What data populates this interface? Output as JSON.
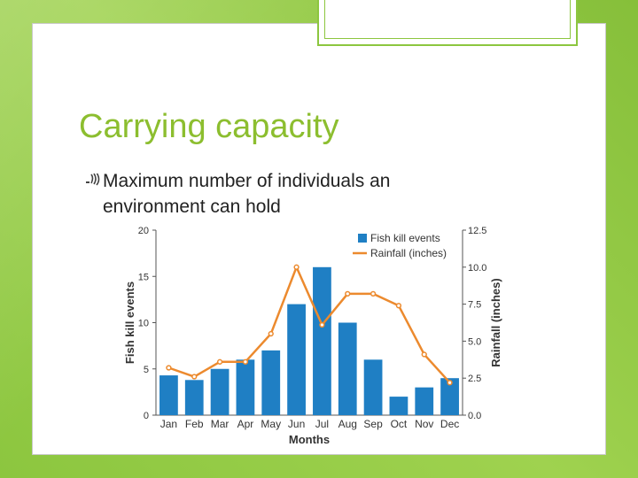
{
  "slide": {
    "title": "Carrying capacity",
    "bullet": "Maximum number of individuals an environment can hold",
    "bullet_icon": "signal-wave-icon",
    "accent_color": "#8cc63f",
    "title_color": "#8cbe2f"
  },
  "chart_data": {
    "type": "bar",
    "categories": [
      "Jan",
      "Feb",
      "Mar",
      "Apr",
      "May",
      "Jun",
      "Jul",
      "Aug",
      "Sep",
      "Oct",
      "Nov",
      "Dec"
    ],
    "series": [
      {
        "name": "Fish kill events",
        "type": "bar",
        "axis": "left",
        "color": "#1f7fc4",
        "values": [
          4.3,
          3.8,
          5,
          6,
          7,
          12,
          16,
          10,
          6,
          2,
          3,
          4
        ]
      },
      {
        "name": "Rainfall (inches)",
        "type": "line",
        "axis": "right",
        "color": "#ec8a2e",
        "values": [
          3.2,
          2.6,
          3.6,
          3.6,
          5.5,
          10.0,
          6.1,
          8.2,
          8.2,
          7.4,
          4.1,
          2.2
        ]
      }
    ],
    "xlabel": "Months",
    "ylabel": "Fish kill events",
    "y2label": "Rainfall (inches)",
    "ylim": [
      0,
      20
    ],
    "y2lim": [
      0,
      12.5
    ],
    "yticks": [
      "0",
      "5",
      "10",
      "15",
      "20"
    ],
    "y2ticks": [
      "0.0",
      "2.5",
      "5.0",
      "7.5",
      "10.0",
      "12.5"
    ],
    "legend_position": "top-right",
    "grid": false
  }
}
